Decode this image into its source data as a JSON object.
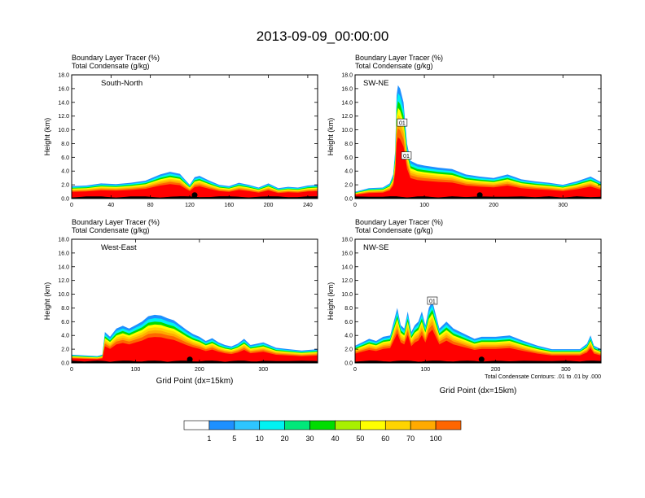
{
  "title": "2013-09-09_00:00:00",
  "chart_data": [
    {
      "type": "area",
      "label": "South-North",
      "header_lines": [
        "Boundary Layer Tracer   (%)",
        "Total Condensate   (g/kg)"
      ],
      "ylabel": "Height (km)",
      "xlabel": "",
      "yticks": [
        "0.0",
        "2.0",
        "4.0",
        "6.0",
        "8.0",
        "10.0",
        "12.0",
        "14.0",
        "16.0",
        "18.0"
      ],
      "xticks": [
        0,
        40,
        80,
        120,
        160,
        200,
        240
      ],
      "xlim": [
        0,
        250
      ],
      "ylim": [
        0,
        18
      ],
      "profile_x": [
        0,
        15,
        30,
        45,
        60,
        75,
        90,
        100,
        110,
        115,
        120,
        125,
        130,
        140,
        150,
        160,
        170,
        180,
        190,
        200,
        210,
        220,
        230,
        240,
        250
      ],
      "profile_top_km": [
        1.8,
        1.9,
        2.2,
        2.1,
        2.3,
        2.6,
        3.5,
        3.9,
        3.6,
        2.8,
        2.0,
        3.1,
        3.3,
        2.6,
        2.0,
        1.8,
        2.3,
        2.0,
        1.6,
        2.2,
        1.5,
        1.7,
        1.6,
        1.9,
        2.0
      ],
      "marker_x": 125
    },
    {
      "type": "area",
      "label": "SW-NE",
      "header_lines": [
        "Boundary Layer Tracer   (%)",
        "Total Condensate   (g/kg)"
      ],
      "ylabel": "Height (km)",
      "xlabel": "",
      "yticks": [
        "0.0",
        "2.0",
        "4.0",
        "6.0",
        "8.0",
        "10.0",
        "12.0",
        "14.0",
        "16.0",
        "18.0"
      ],
      "xticks": [
        0,
        100,
        200,
        300
      ],
      "xlim": [
        0,
        355
      ],
      "ylim": [
        0,
        18
      ],
      "profile_x": [
        0,
        20,
        40,
        50,
        55,
        58,
        60,
        62,
        65,
        70,
        75,
        80,
        90,
        100,
        120,
        140,
        160,
        180,
        200,
        220,
        240,
        260,
        280,
        300,
        320,
        340,
        355
      ],
      "profile_top_km": [
        1.0,
        1.5,
        1.6,
        2.2,
        3.5,
        7.0,
        15.0,
        16.5,
        16.0,
        14.0,
        8.0,
        5.5,
        5.0,
        4.8,
        4.5,
        4.3,
        3.5,
        3.2,
        3.0,
        3.5,
        2.8,
        2.5,
        2.3,
        2.0,
        2.5,
        3.2,
        2.4
      ],
      "contour_labels": [
        "01",
        "01"
      ],
      "marker_x": 180
    },
    {
      "type": "area",
      "label": "West-East",
      "header_lines": [
        "Boundary Layer Tracer   (%)",
        "Total Condensate   (g/kg)"
      ],
      "ylabel": "Height (km)",
      "xlabel": "Grid Point (dx=15km)",
      "yticks": [
        "0.0",
        "2.0",
        "4.0",
        "6.0",
        "8.0",
        "10.0",
        "12.0",
        "14.0",
        "16.0",
        "18.0"
      ],
      "xticks": [
        0,
        100,
        200,
        300
      ],
      "xlim": [
        0,
        385
      ],
      "ylim": [
        0,
        18
      ],
      "profile_x": [
        0,
        20,
        40,
        48,
        52,
        60,
        70,
        80,
        90,
        100,
        110,
        120,
        130,
        140,
        150,
        160,
        170,
        180,
        190,
        200,
        210,
        220,
        230,
        240,
        250,
        260,
        270,
        280,
        290,
        300,
        320,
        340,
        360,
        385
      ],
      "profile_top_km": [
        1.2,
        1.1,
        1.0,
        1.2,
        4.5,
        3.8,
        5.0,
        5.4,
        5.0,
        5.5,
        6.0,
        6.8,
        7.0,
        6.9,
        6.5,
        6.2,
        5.5,
        4.8,
        4.2,
        3.8,
        3.2,
        3.6,
        3.0,
        2.6,
        2.4,
        2.8,
        3.5,
        2.6,
        2.8,
        3.0,
        2.2,
        2.0,
        1.8,
        2.0
      ],
      "marker_x": 185
    },
    {
      "type": "area",
      "label": "NW-SE",
      "header_lines": [
        "Boundary Layer Tracer   (%)",
        "Total Condensate   (g/kg)"
      ],
      "ylabel": "Height (km)",
      "xlabel": "Grid Point (dx=15km)",
      "note": "Total Condensate Contours: .01 to .01 by .000",
      "yticks": [
        "0.0",
        "2.0",
        "4.0",
        "6.0",
        "8.0",
        "10.0",
        "12.0",
        "14.0",
        "16.0",
        "18.0"
      ],
      "xticks": [
        0,
        100,
        200,
        300
      ],
      "xlim": [
        0,
        350
      ],
      "ylim": [
        0,
        18
      ],
      "profile_x": [
        0,
        10,
        20,
        30,
        40,
        50,
        55,
        60,
        65,
        70,
        75,
        80,
        85,
        90,
        95,
        100,
        105,
        110,
        115,
        120,
        130,
        140,
        150,
        160,
        170,
        180,
        200,
        220,
        240,
        260,
        280,
        300,
        320,
        330,
        335,
        340,
        350
      ],
      "profile_top_km": [
        2.5,
        3.0,
        3.5,
        3.2,
        3.8,
        4.0,
        6.0,
        8.0,
        5.5,
        5.0,
        7.5,
        4.5,
        5.5,
        6.0,
        7.5,
        5.5,
        8.0,
        9.0,
        7.0,
        5.0,
        6.0,
        5.0,
        4.5,
        4.0,
        3.5,
        3.8,
        3.8,
        4.0,
        3.2,
        2.5,
        2.0,
        2.0,
        2.0,
        2.8,
        4.0,
        2.5,
        2.0
      ],
      "contour_labels": [
        "01"
      ],
      "marker_x": 180
    }
  ],
  "colorbar": {
    "labels": [
      "1",
      "5",
      "10",
      "20",
      "30",
      "40",
      "50",
      "60",
      "70",
      "100"
    ],
    "colors": [
      "#ffffff",
      "#1e90ff",
      "#2ec5ff",
      "#00f2f2",
      "#00e87a",
      "#00dd00",
      "#a8f000",
      "#ffff00",
      "#ffd400",
      "#ffaa00",
      "#ff6600",
      "#ff0000"
    ]
  }
}
